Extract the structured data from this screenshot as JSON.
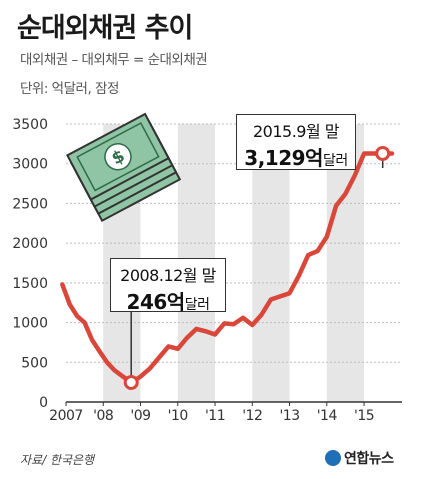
{
  "title": "순대외채권 추이",
  "formula": "대외채권 – 대외채무 = 순대외채권",
  "unit": "단위: 억달러, 잠정",
  "source": "자료/ 한국은행",
  "brand": "연합뉴스",
  "colors": {
    "line": "#d9473a",
    "band": "#e6e6e6",
    "marker_fill": "#ffffff"
  },
  "chart_data": {
    "type": "line",
    "title": "순대외채권 추이",
    "xlabel": "",
    "ylabel": "",
    "ylim": [
      0,
      3500
    ],
    "yticks": [
      0,
      500,
      1000,
      1500,
      2000,
      2500,
      3000,
      3500
    ],
    "xlim": [
      2007.0,
      2015.75
    ],
    "xticks": [
      {
        "x": 2007.0,
        "label": "2007"
      },
      {
        "x": 2008.0,
        "label": "'08"
      },
      {
        "x": 2009.0,
        "label": "'09"
      },
      {
        "x": 2010.0,
        "label": "'10"
      },
      {
        "x": 2011.0,
        "label": "'11"
      },
      {
        "x": 2012.0,
        "label": "'12"
      },
      {
        "x": 2013.0,
        "label": "'13"
      },
      {
        "x": 2014.0,
        "label": "'14"
      },
      {
        "x": 2015.0,
        "label": "'15"
      }
    ],
    "shaded_years": [
      2008,
      2010,
      2012,
      2014
    ],
    "grid": true,
    "series": [
      {
        "x": [
          2006.9,
          2007.1,
          2007.3,
          2007.5,
          2007.7,
          2007.9,
          2008.1,
          2008.3,
          2008.5,
          2008.75,
          2009.0,
          2009.25,
          2009.5,
          2009.75,
          2010.0,
          2010.25,
          2010.5,
          2010.75,
          2011.0,
          2011.25,
          2011.5,
          2011.75,
          2012.0,
          2012.25,
          2012.5,
          2012.75,
          2013.0,
          2013.25,
          2013.5,
          2013.75,
          2014.0,
          2014.25,
          2014.5,
          2014.75,
          2015.0,
          2015.25,
          2015.5,
          2015.75
        ],
        "values": [
          1480,
          1230,
          1080,
          1000,
          780,
          640,
          500,
          400,
          330,
          246,
          320,
          420,
          560,
          700,
          670,
          810,
          920,
          890,
          850,
          990,
          980,
          1060,
          970,
          1100,
          1290,
          1330,
          1370,
          1590,
          1850,
          1900,
          2080,
          2470,
          2620,
          2850,
          3129,
          3129,
          3129,
          3129
        ]
      }
    ],
    "annotations": [
      {
        "line1": "2008.12월 말",
        "value": "246억",
        "unit": "달러",
        "x": 2008.75,
        "y": 246
      },
      {
        "line1": "2015.9월 말",
        "value": "3,129억",
        "unit": "달러",
        "x": 2015.5,
        "y": 3129
      }
    ]
  }
}
